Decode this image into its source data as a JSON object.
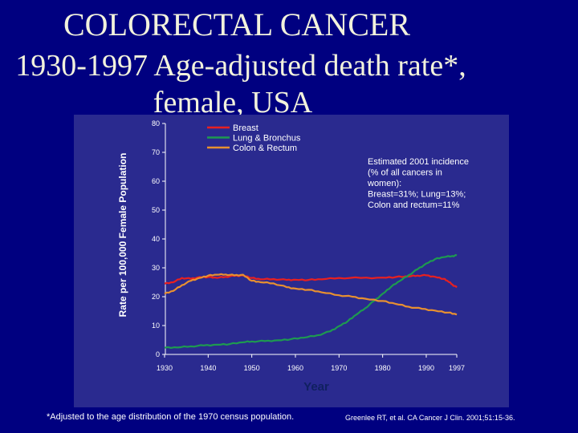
{
  "slide": {
    "title_line1": "COLORECTAL CANCER",
    "title_line2": "1930-1997 Age-adjusted death rate*,",
    "title_line3": "female, USA",
    "footnote": "*Adjusted to the age distribution of the 1970 census population.",
    "citation": "Greenlee RT, et al. CA Cancer J Clin. 2001;51:15-36."
  },
  "chart_data": {
    "type": "line",
    "title": "",
    "xlabel": "Year",
    "ylabel": "Rate per 100,000 Female Population",
    "xlim": [
      1930,
      1997
    ],
    "ylim": [
      0,
      80
    ],
    "x_ticks": [
      "1930",
      "1940",
      "1950",
      "1960",
      "1970",
      "1980",
      "1990",
      "1997"
    ],
    "y_ticks": [
      "0",
      "10",
      "20",
      "30",
      "40",
      "50",
      "60",
      "70",
      "80"
    ],
    "legend_position": "top",
    "annotation": "Estimated 2001 incidence (% of all cancers in women): Breast=31%; Lung=13%; Colon and rectum=11%",
    "annotation_lines": [
      "Estimated 2001 incidence",
      "(% of all cancers in",
      "women):",
      "Breast=31%; Lung=13%;",
      "Colon and rectum=11%"
    ],
    "series": [
      {
        "name": "Breast",
        "color": "#e82020",
        "x": [
          1930,
          1932,
          1934,
          1936,
          1938,
          1940,
          1942,
          1944,
          1946,
          1948,
          1950,
          1952,
          1955,
          1958,
          1960,
          1963,
          1966,
          1970,
          1975,
          1980,
          1983,
          1986,
          1988,
          1990,
          1992,
          1994,
          1995,
          1996,
          1997
        ],
        "y": [
          24.5,
          25,
          26.5,
          26.2,
          26.8,
          26.8,
          26.5,
          26.9,
          27.2,
          27.4,
          26.5,
          26.0,
          26.1,
          25.8,
          25.9,
          25.8,
          26.0,
          26.5,
          26.5,
          26.6,
          26.8,
          27.0,
          27.3,
          27.4,
          26.9,
          26.2,
          25.3,
          24.2,
          23.2
        ]
      },
      {
        "name": "Lung & Bronchus",
        "color": "#1e9a50",
        "x": [
          1930,
          1933,
          1936,
          1939,
          1942,
          1945,
          1948,
          1950,
          1953,
          1956,
          1959,
          1962,
          1965,
          1968,
          1970,
          1972,
          1974,
          1976,
          1978,
          1980,
          1982,
          1984,
          1986,
          1988,
          1990,
          1992,
          1994,
          1996,
          1997
        ],
        "y": [
          2.3,
          2.4,
          2.8,
          3.1,
          3.4,
          3.6,
          4.2,
          4.5,
          4.6,
          4.9,
          5.3,
          5.8,
          6.6,
          8.0,
          9.8,
          11.5,
          13.8,
          16.0,
          18.5,
          21.0,
          23.5,
          25.5,
          27.5,
          29.5,
          31.5,
          33.0,
          33.7,
          34.1,
          34.3
        ]
      },
      {
        "name": "Colon & Rectum",
        "color": "#e89030",
        "x": [
          1930,
          1932,
          1934,
          1936,
          1938,
          1940,
          1942,
          1944,
          1946,
          1948,
          1950,
          1952,
          1955,
          1958,
          1960,
          1963,
          1966,
          1970,
          1973,
          1976,
          1980,
          1983,
          1986,
          1989,
          1992,
          1995,
          1997
        ],
        "y": [
          21,
          22,
          24,
          25.5,
          26.5,
          27.3,
          27.6,
          27.7,
          27.4,
          27.6,
          25.5,
          25.0,
          24.6,
          23.3,
          22.8,
          22.4,
          21.5,
          20.5,
          20.0,
          19.3,
          18.5,
          17.5,
          16.5,
          15.8,
          15.2,
          14.5,
          13.8
        ]
      }
    ]
  }
}
